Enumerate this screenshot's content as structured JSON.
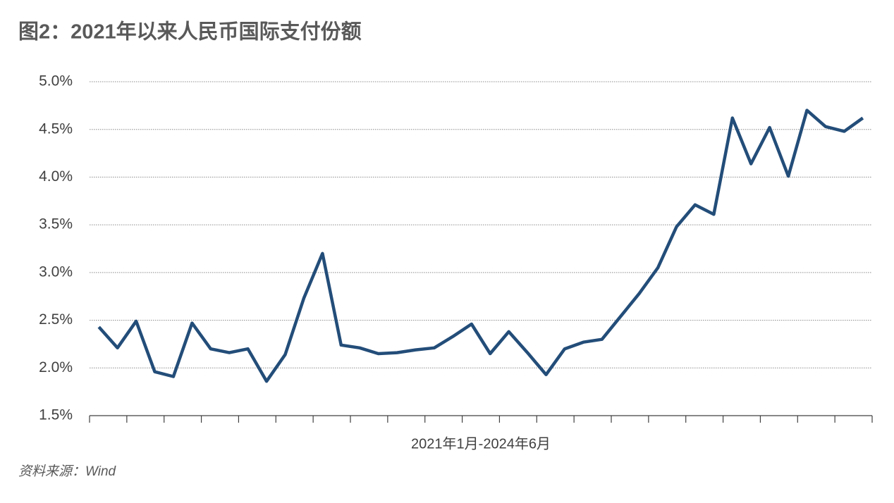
{
  "chart_data": {
    "type": "line",
    "title": "图2：2021年以来人民币国际支付份额",
    "x_label": "2021年1月-2024年6月",
    "source": "资料来源：Wind",
    "categories": [
      null,
      null,
      null,
      null,
      null,
      null,
      null,
      null,
      null,
      null,
      null,
      null,
      null,
      null,
      null,
      null,
      null,
      null,
      null,
      null,
      null,
      null,
      null,
      null,
      null,
      null,
      null,
      null,
      null,
      null,
      null,
      null,
      null,
      null,
      null,
      null,
      null,
      null,
      null,
      null,
      null,
      null
    ],
    "series": [
      {
        "color": "#234d79",
        "values": [
          2.43,
          2.21,
          2.49,
          1.96,
          1.91,
          2.47,
          2.2,
          2.16,
          2.2,
          1.86,
          2.14,
          2.73,
          3.2,
          2.24,
          2.21,
          2.15,
          2.16,
          2.19,
          2.21,
          2.33,
          2.46,
          2.15,
          2.38,
          2.16,
          1.93,
          2.2,
          2.27,
          2.3,
          2.54,
          2.78,
          3.05,
          3.48,
          3.71,
          3.61,
          4.62,
          4.14,
          4.52,
          4.01,
          4.7,
          4.53,
          4.48,
          4.62
        ]
      }
    ],
    "ylim": [
      1.5,
      5.0
    ],
    "yticks": [
      {
        "value": 1.5,
        "label": "1.5%"
      },
      {
        "value": 2.0,
        "label": "2.0%"
      },
      {
        "value": 2.5,
        "label": "2.5%"
      },
      {
        "value": 3.0,
        "label": "3.0%"
      },
      {
        "value": 3.5,
        "label": "3.5%"
      },
      {
        "value": 4.0,
        "label": "4.0%"
      },
      {
        "value": 4.5,
        "label": "4.5%"
      },
      {
        "value": 5.0,
        "label": "5.0%"
      }
    ],
    "grid": true
  }
}
